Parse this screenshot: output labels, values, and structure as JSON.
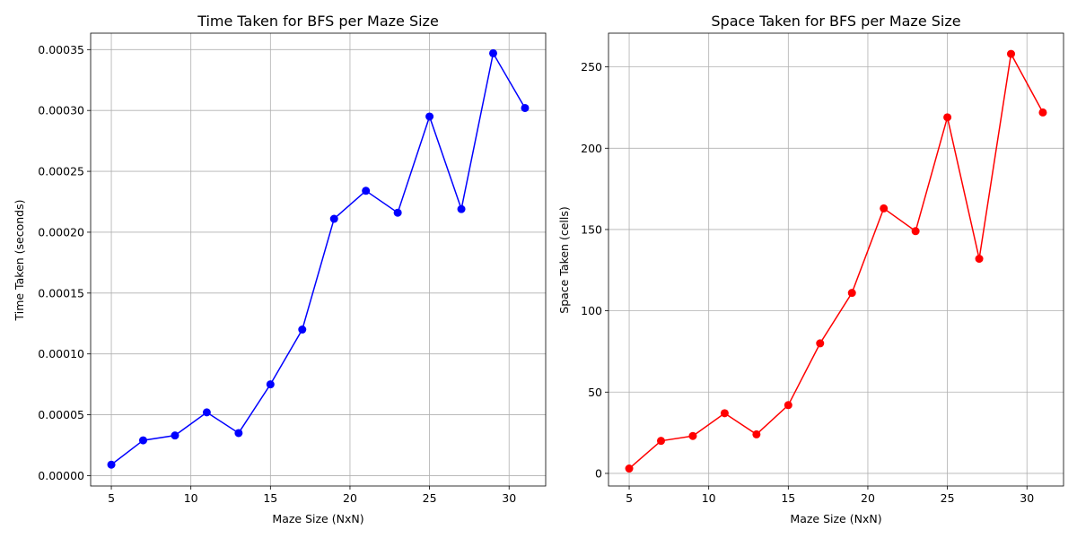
{
  "chart_data": [
    {
      "type": "line",
      "title": "Time Taken for BFS per Maze Size",
      "xlabel": "Maze Size (NxN)",
      "ylabel": "Time Taken (seconds)",
      "grid": true,
      "xlim": [
        3.7,
        32.3
      ],
      "ylim": [
        -8.5e-06,
        0.0003635
      ],
      "xticks": [
        5,
        10,
        15,
        20,
        25,
        30
      ],
      "xtick_labels": [
        "5",
        "10",
        "15",
        "20",
        "25",
        "30"
      ],
      "yticks": [
        0,
        5e-05,
        0.0001,
        0.00015,
        0.0002,
        0.00025,
        0.0003,
        0.00035
      ],
      "ytick_labels": [
        "0.00000",
        "0.00005",
        "0.00010",
        "0.00015",
        "0.00020",
        "0.00025",
        "0.00030",
        "0.00035"
      ],
      "color": "#0000ff",
      "series": [
        {
          "x": [
            5,
            7,
            9,
            11,
            13,
            15,
            17,
            19,
            21,
            23,
            25,
            27,
            29,
            31
          ],
          "y": [
            9e-06,
            2.9e-05,
            3.3e-05,
            5.2e-05,
            3.5e-05,
            7.5e-05,
            0.00012,
            0.000211,
            0.000234,
            0.000216,
            0.000295,
            0.000219,
            0.000347,
            0.000302
          ]
        }
      ]
    },
    {
      "type": "line",
      "title": "Space Taken for BFS per Maze Size",
      "xlabel": "Maze Size (NxN)",
      "ylabel": "Space Taken (cells)",
      "grid": true,
      "xlim": [
        3.7,
        32.3
      ],
      "ylim": [
        -7.75,
        270.75
      ],
      "xticks": [
        5,
        10,
        15,
        20,
        25,
        30
      ],
      "xtick_labels": [
        "5",
        "10",
        "15",
        "20",
        "25",
        "30"
      ],
      "yticks": [
        0,
        50,
        100,
        150,
        200,
        250
      ],
      "ytick_labels": [
        "0",
        "50",
        "100",
        "150",
        "200",
        "250"
      ],
      "color": "#ff0000",
      "series": [
        {
          "x": [
            5,
            7,
            9,
            11,
            13,
            15,
            17,
            19,
            21,
            23,
            25,
            27,
            29,
            31
          ],
          "y": [
            3,
            20,
            23,
            37,
            24,
            42,
            80,
            111,
            163,
            149,
            219,
            132,
            258,
            222
          ]
        }
      ]
    }
  ]
}
